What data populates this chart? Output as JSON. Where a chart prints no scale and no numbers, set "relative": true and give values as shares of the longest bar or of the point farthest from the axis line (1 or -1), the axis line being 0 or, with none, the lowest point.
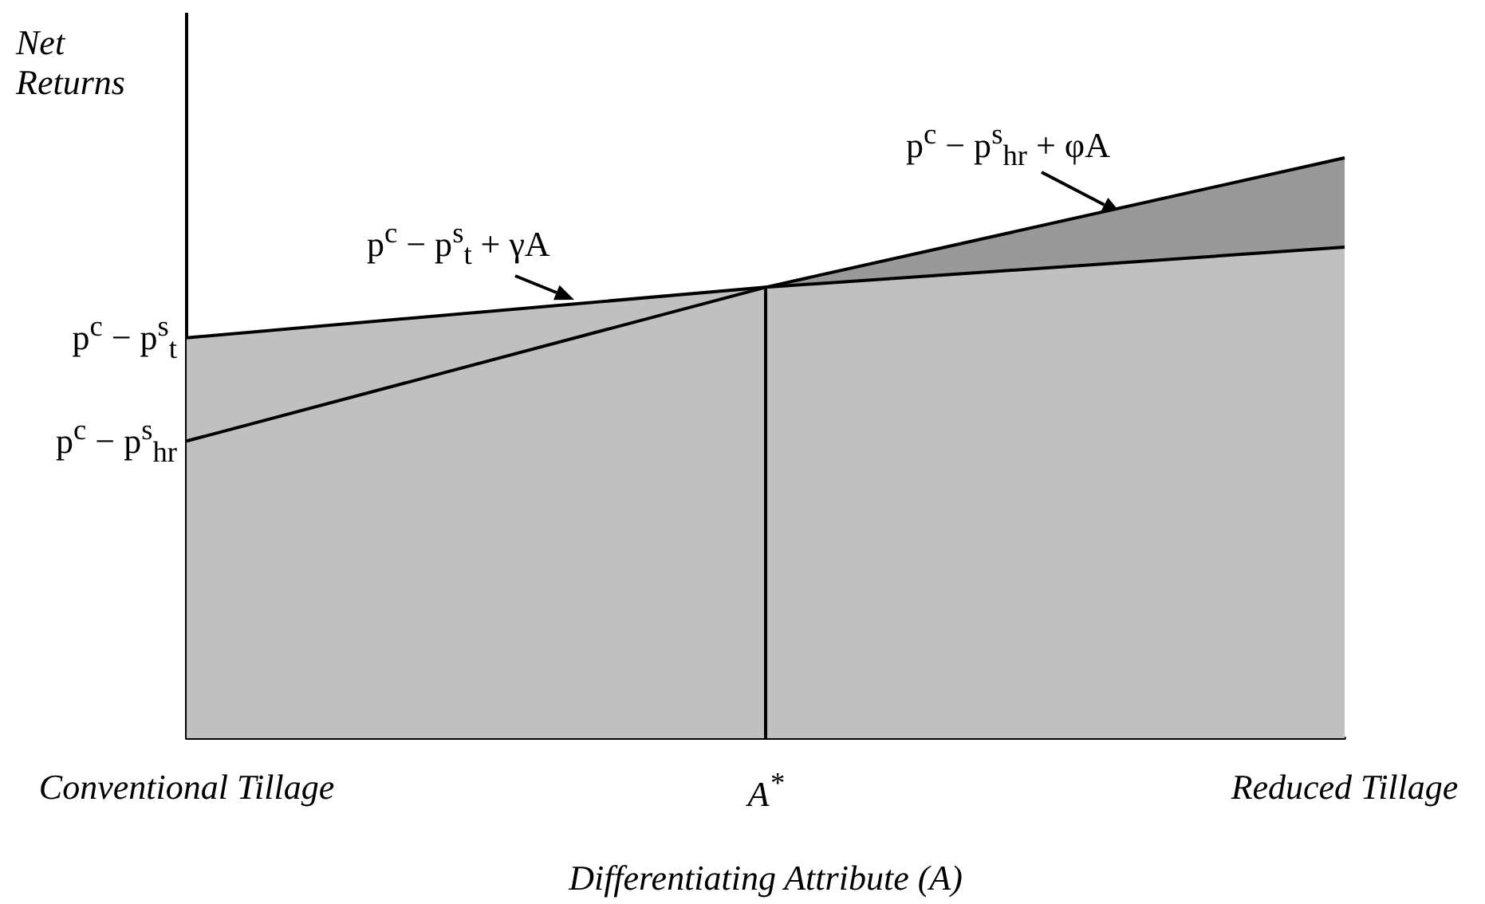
{
  "chart_data": {
    "type": "area",
    "relative": true,
    "ylabel": "Net Returns",
    "xlabel": "Differentiating Attribute (A)",
    "categories": [
      "Conventional Tillage",
      "A$^{*}$",
      "Reduced Tillage"
    ],
    "series": [
      {
        "color": "#999999",
        "values": [
          0.512,
          0.777,
          1
        ]
      },
      {
        "color": "#c0c0c0",
        "values": [
          0.69,
          0.777,
          0.846
        ]
      }
    ],
    "ref_lines": [
      {
        "axis": "x",
        "value": "A$^{*}$",
        "label": null
      }
    ],
    "annotations": [
      "p$^{c}$ − p$^{s}$$_{t}$",
      "p$^{c}$ − p$^{s}$$_{hr}$",
      "p$^{c}$ − p$^{s}$$_{t}$ + γA",
      "p$^{c}$ − p$^{s}$$_{hr}$ + φA"
    ]
  }
}
